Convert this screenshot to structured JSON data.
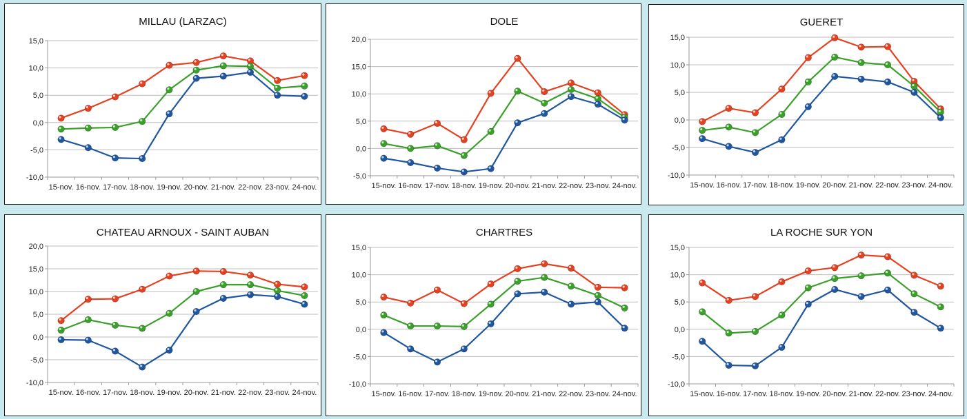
{
  "colors": {
    "max": "#e5401f",
    "mean": "#3aa02a",
    "min": "#1f56a0",
    "background": "#c9e9ef",
    "panel_border": "#1a1a1a",
    "grid": "#bdbdbd"
  },
  "chart_data": [
    {
      "type": "line",
      "title": "MILLAU (LARZAC)",
      "categories": [
        "15-nov.",
        "16-nov.",
        "17-nov.",
        "18-nov.",
        "19-nov.",
        "20-nov.",
        "21-nov.",
        "22-nov.",
        "23-nov.",
        "24-nov."
      ],
      "ylim": [
        -10,
        15
      ],
      "yticks": [
        "-10,0",
        "-5,0",
        "0,0",
        "5,0",
        "10,0",
        "15,0"
      ],
      "grid": true,
      "legend": "none",
      "series": [
        {
          "color": "#e5401f",
          "values": [
            0.8,
            2.6,
            4.7,
            7.1,
            10.5,
            11.0,
            12.2,
            11.3,
            7.7,
            8.6
          ]
        },
        {
          "color": "#3aa02a",
          "values": [
            -1.2,
            -1.0,
            -0.9,
            0.2,
            6.0,
            9.6,
            10.4,
            10.3,
            6.3,
            6.7
          ]
        },
        {
          "color": "#1f56a0",
          "values": [
            -3.1,
            -4.6,
            -6.5,
            -6.6,
            1.6,
            8.1,
            8.5,
            9.2,
            5.0,
            4.8
          ]
        }
      ]
    },
    {
      "type": "line",
      "title": "DOLE",
      "categories": [
        "15-nov.",
        "16-nov.",
        "17-nov.",
        "18-nov.",
        "19-nov.",
        "20-nov.",
        "21-nov.",
        "22-nov.",
        "23-nov.",
        "24-nov."
      ],
      "ylim": [
        -5,
        20
      ],
      "yticks": [
        "-5,0",
        "0,0",
        "5,0",
        "10,0",
        "15,0",
        "20,0"
      ],
      "grid": true,
      "legend": "none",
      "series": [
        {
          "color": "#e5401f",
          "values": [
            3.6,
            2.6,
            4.6,
            1.6,
            10.1,
            16.5,
            10.4,
            12.0,
            10.2,
            6.2
          ]
        },
        {
          "color": "#3aa02a",
          "values": [
            0.9,
            0.0,
            0.5,
            -1.3,
            3.1,
            10.5,
            8.3,
            10.8,
            9.1,
            5.7
          ]
        },
        {
          "color": "#1f56a0",
          "values": [
            -1.8,
            -2.6,
            -3.6,
            -4.3,
            -3.7,
            4.7,
            6.4,
            9.5,
            8.1,
            5.2
          ]
        }
      ]
    },
    {
      "type": "line",
      "title": "GUERET",
      "categories": [
        "15-nov.",
        "16-nov.",
        "17-nov.",
        "18-nov.",
        "19-nov.",
        "20-nov.",
        "21-nov.",
        "22-nov.",
        "23-nov.",
        "24-nov."
      ],
      "ylim": [
        -10,
        15
      ],
      "yticks": [
        "-10,0",
        "-5,0",
        "0,0",
        "5,0",
        "10,0",
        "15,0"
      ],
      "grid": true,
      "legend": "none",
      "series": [
        {
          "color": "#e5401f",
          "values": [
            -0.3,
            2.1,
            1.3,
            5.6,
            11.3,
            14.9,
            13.2,
            13.3,
            7.0,
            2.0
          ]
        },
        {
          "color": "#3aa02a",
          "values": [
            -1.9,
            -1.3,
            -2.3,
            1.0,
            6.9,
            11.4,
            10.4,
            10.0,
            6.1,
            1.4
          ]
        },
        {
          "color": "#1f56a0",
          "values": [
            -3.4,
            -4.8,
            -5.9,
            -3.6,
            2.4,
            7.9,
            7.4,
            6.9,
            5.0,
            0.4
          ]
        }
      ]
    },
    {
      "type": "line",
      "title": "CHATEAU ARNOUX - SAINT AUBAN",
      "categories": [
        "15-nov.",
        "16-nov.",
        "17-nov.",
        "18-nov.",
        "19-nov.",
        "20-nov.",
        "21-nov.",
        "22-nov.",
        "23-nov.",
        "24-nov."
      ],
      "ylim": [
        -10,
        20
      ],
      "yticks": [
        "-10,0",
        "-5,0",
        "0,0",
        "5,0",
        "10,0",
        "15,0",
        "20,0"
      ],
      "grid": true,
      "legend": "none",
      "series": [
        {
          "color": "#e5401f",
          "values": [
            3.6,
            8.3,
            8.4,
            10.5,
            13.4,
            14.5,
            14.4,
            13.6,
            11.6,
            11.0
          ]
        },
        {
          "color": "#3aa02a",
          "values": [
            1.5,
            3.8,
            2.6,
            1.9,
            5.2,
            10.0,
            11.5,
            11.5,
            10.2,
            9.1
          ]
        },
        {
          "color": "#1f56a0",
          "values": [
            -0.6,
            -0.7,
            -3.1,
            -6.6,
            -2.9,
            5.6,
            8.5,
            9.3,
            8.9,
            7.2
          ]
        }
      ]
    },
    {
      "type": "line",
      "title": "CHARTRES",
      "categories": [
        "15-nov.",
        "16-nov.",
        "17-nov.",
        "18-nov.",
        "19-nov.",
        "20-nov.",
        "21-nov.",
        "22-nov.",
        "23-nov.",
        "24-nov."
      ],
      "ylim": [
        -10,
        15
      ],
      "yticks": [
        "-10,0",
        "-5,0",
        "0,0",
        "5,0",
        "10,0",
        "15,0"
      ],
      "grid": true,
      "legend": "none",
      "series": [
        {
          "color": "#e5401f",
          "values": [
            5.9,
            4.8,
            7.2,
            4.7,
            8.3,
            11.1,
            12.0,
            11.2,
            7.7,
            7.6
          ]
        },
        {
          "color": "#3aa02a",
          "values": [
            2.6,
            0.6,
            0.6,
            0.5,
            4.6,
            8.8,
            9.5,
            7.9,
            6.2,
            3.9
          ]
        },
        {
          "color": "#1f56a0",
          "values": [
            -0.6,
            -3.6,
            -6.0,
            -3.6,
            1.0,
            6.5,
            6.8,
            4.6,
            5.0,
            0.2
          ]
        }
      ]
    },
    {
      "type": "line",
      "title": "LA ROCHE SUR YON",
      "categories": [
        "15-nov.",
        "16-nov.",
        "17-nov.",
        "18-nov.",
        "19-nov.",
        "20-nov.",
        "21-nov.",
        "22-nov.",
        "23-nov.",
        "24-nov."
      ],
      "ylim": [
        -10,
        15
      ],
      "yticks": [
        "-10,0",
        "-5,0",
        "0,0",
        "5,0",
        "10,0",
        "15,0"
      ],
      "grid": true,
      "legend": "none",
      "series": [
        {
          "color": "#e5401f",
          "values": [
            8.5,
            5.3,
            6.0,
            8.7,
            10.7,
            11.3,
            13.6,
            13.3,
            9.9,
            7.9
          ]
        },
        {
          "color": "#3aa02a",
          "values": [
            3.2,
            -0.7,
            -0.4,
            2.6,
            7.6,
            9.3,
            9.8,
            10.3,
            6.5,
            4.1
          ]
        },
        {
          "color": "#1f56a0",
          "values": [
            -2.2,
            -6.6,
            -6.7,
            -3.3,
            4.6,
            7.3,
            6.0,
            7.2,
            3.1,
            0.2
          ]
        }
      ]
    }
  ]
}
